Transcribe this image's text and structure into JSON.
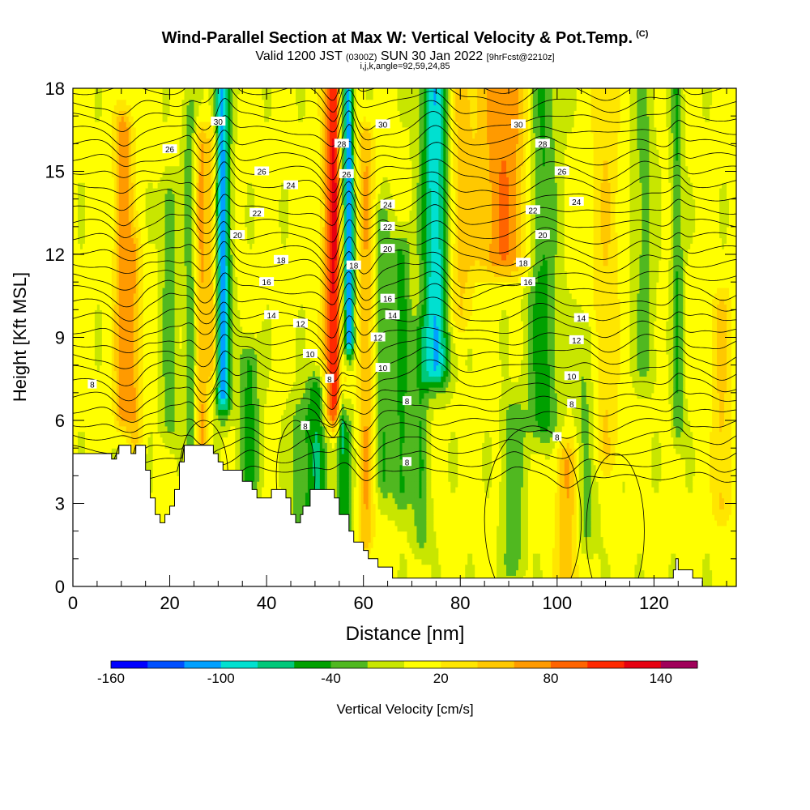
{
  "title": {
    "main": "Wind-Parallel Section at Max W: Vertical Velocity & Pot.Temp.",
    "copyright": "(C)",
    "valid_prefix": "Valid 1200 JST",
    "valid_utc": "(0300Z)",
    "valid_date": "SUN 30 Jan 2022",
    "fcst": "[9hrFcst@2210z]",
    "params": "i,j,k,angle=92,59,24,85"
  },
  "chart_data": {
    "type": "heatmap",
    "xlabel": "Distance [nm]",
    "ylabel": "Height [Kft MSL]",
    "xlim": [
      0,
      137
    ],
    "ylim": [
      0,
      18
    ],
    "x_ticks": [
      "0",
      "20",
      "40",
      "60",
      "80",
      "100",
      "120"
    ],
    "y_ticks": [
      "0",
      "3",
      "6",
      "9",
      "12",
      "15",
      "18"
    ],
    "colorbar": {
      "label": "Vertical Velocity [cm/s]",
      "tick_labels": [
        "-160",
        "-100",
        "-40",
        "20",
        "80",
        "140"
      ],
      "bounds": [
        -160,
        -140,
        -120,
        -100,
        -80,
        -60,
        -40,
        -20,
        0,
        20,
        40,
        60,
        80,
        100,
        120,
        140,
        160
      ],
      "colors": [
        "#0000ff",
        "#0050ff",
        "#00a0ff",
        "#00e0d0",
        "#00c87a",
        "#00a000",
        "#50b820",
        "#c8e600",
        "#ffff00",
        "#ffe600",
        "#ffc800",
        "#ff9a00",
        "#ff6400",
        "#ff2800",
        "#e60010",
        "#a0005a",
        "#5a0080"
      ]
    },
    "contour_field": "Potential Temperature",
    "contour_labels": [
      {
        "text": "30",
        "x": 30,
        "y": 16.8
      },
      {
        "text": "26",
        "x": 20,
        "y": 15.8
      },
      {
        "text": "26",
        "x": 39,
        "y": 15.0
      },
      {
        "text": "24",
        "x": 45,
        "y": 14.5
      },
      {
        "text": "22",
        "x": 38,
        "y": 13.5
      },
      {
        "text": "20",
        "x": 34,
        "y": 12.7
      },
      {
        "text": "18",
        "x": 43,
        "y": 11.8
      },
      {
        "text": "16",
        "x": 40,
        "y": 11.0
      },
      {
        "text": "14",
        "x": 41,
        "y": 9.8
      },
      {
        "text": "12",
        "x": 47,
        "y": 9.5
      },
      {
        "text": "10",
        "x": 49,
        "y": 8.4
      },
      {
        "text": "8",
        "x": 53,
        "y": 7.5
      },
      {
        "text": "8",
        "x": 4,
        "y": 7.3
      },
      {
        "text": "28",
        "x": 55.5,
        "y": 16.0
      },
      {
        "text": "26",
        "x": 56.5,
        "y": 14.9
      },
      {
        "text": "18",
        "x": 58,
        "y": 11.6
      },
      {
        "text": "30",
        "x": 64,
        "y": 16.7
      },
      {
        "text": "24",
        "x": 65,
        "y": 13.8
      },
      {
        "text": "22",
        "x": 65,
        "y": 13.0
      },
      {
        "text": "20",
        "x": 65,
        "y": 12.2
      },
      {
        "text": "16",
        "x": 65,
        "y": 10.4
      },
      {
        "text": "14",
        "x": 66,
        "y": 9.8
      },
      {
        "text": "12",
        "x": 63,
        "y": 9.0
      },
      {
        "text": "10",
        "x": 64,
        "y": 7.9
      },
      {
        "text": "8",
        "x": 69,
        "y": 6.7
      },
      {
        "text": "8",
        "x": 48,
        "y": 5.8
      },
      {
        "text": "8",
        "x": 69,
        "y": 4.5
      },
      {
        "text": "30",
        "x": 92,
        "y": 16.7
      },
      {
        "text": "28",
        "x": 97,
        "y": 16.0
      },
      {
        "text": "26",
        "x": 101,
        "y": 15.0
      },
      {
        "text": "24",
        "x": 104,
        "y": 13.9
      },
      {
        "text": "22",
        "x": 95,
        "y": 13.6
      },
      {
        "text": "20",
        "x": 97,
        "y": 12.7
      },
      {
        "text": "18",
        "x": 93,
        "y": 11.7
      },
      {
        "text": "16",
        "x": 94,
        "y": 11.0
      },
      {
        "text": "14",
        "x": 105,
        "y": 9.7
      },
      {
        "text": "12",
        "x": 104,
        "y": 8.9
      },
      {
        "text": "10",
        "x": 103,
        "y": 7.6
      },
      {
        "text": "8",
        "x": 103,
        "y": 6.6
      },
      {
        "text": "8",
        "x": 100,
        "y": 5.4
      }
    ],
    "terrain_kft": [
      [
        0,
        4.8
      ],
      [
        8,
        4.8
      ],
      [
        8,
        4.6
      ],
      [
        9,
        4.6
      ],
      [
        9,
        4.8
      ],
      [
        9.5,
        4.8
      ],
      [
        9.5,
        5.1
      ],
      [
        12,
        5.1
      ],
      [
        12,
        4.8
      ],
      [
        13,
        4.8
      ],
      [
        13,
        5.1
      ],
      [
        15,
        5.1
      ],
      [
        15,
        4.2
      ],
      [
        16,
        4.2
      ],
      [
        16,
        3.2
      ],
      [
        17,
        3.2
      ],
      [
        17,
        2.6
      ],
      [
        18,
        2.6
      ],
      [
        18,
        2.3
      ],
      [
        19,
        2.3
      ],
      [
        19,
        2.6
      ],
      [
        20,
        2.6
      ],
      [
        20,
        2.9
      ],
      [
        21,
        2.9
      ],
      [
        21,
        3.5
      ],
      [
        22,
        3.5
      ],
      [
        22,
        4.5
      ],
      [
        23,
        4.5
      ],
      [
        23,
        5.1
      ],
      [
        29,
        5.1
      ],
      [
        29,
        4.8
      ],
      [
        30,
        4.8
      ],
      [
        30,
        4.5
      ],
      [
        31,
        4.5
      ],
      [
        31,
        4.2
      ],
      [
        35,
        4.2
      ],
      [
        35,
        3.8
      ],
      [
        37,
        3.8
      ],
      [
        37,
        3.5
      ],
      [
        38,
        3.5
      ],
      [
        38,
        3.2
      ],
      [
        41,
        3.2
      ],
      [
        41,
        3.5
      ],
      [
        44,
        3.5
      ],
      [
        44,
        3.2
      ],
      [
        45,
        3.2
      ],
      [
        45,
        2.6
      ],
      [
        46,
        2.6
      ],
      [
        46,
        2.3
      ],
      [
        47,
        2.3
      ],
      [
        47,
        2.6
      ],
      [
        47.5,
        2.6
      ],
      [
        47.5,
        2.9
      ],
      [
        49,
        2.9
      ],
      [
        49,
        3.5
      ],
      [
        54,
        3.5
      ],
      [
        54,
        3.2
      ],
      [
        55,
        3.2
      ],
      [
        55,
        2.6
      ],
      [
        57,
        2.6
      ],
      [
        57,
        2.0
      ],
      [
        58,
        2.0
      ],
      [
        58,
        1.6
      ],
      [
        60,
        1.6
      ],
      [
        60,
        1.3
      ],
      [
        61,
        1.3
      ],
      [
        61,
        1.0
      ],
      [
        63,
        1.0
      ],
      [
        63,
        0.7
      ],
      [
        66,
        0.7
      ],
      [
        66,
        0.3
      ],
      [
        124,
        0.3
      ],
      [
        124,
        0.6
      ],
      [
        124.5,
        0.6
      ],
      [
        124.5,
        1.0
      ],
      [
        125,
        1.0
      ],
      [
        125,
        0.6
      ],
      [
        128,
        0.6
      ],
      [
        128,
        0.3
      ],
      [
        130,
        0.3
      ],
      [
        130,
        0.0
      ],
      [
        137,
        0.0
      ]
    ],
    "w_features": [
      {
        "x": 10.5,
        "z0": 6.5,
        "z1": 16.5,
        "amp": 70,
        "w": 1.4
      },
      {
        "x": 13,
        "z0": 5.5,
        "z1": 12,
        "amp": 40,
        "w": 1.0
      },
      {
        "x": 20,
        "z0": 6,
        "z1": 14,
        "amp": -35,
        "w": 1.2
      },
      {
        "x": 24.5,
        "z0": 5,
        "z1": 17,
        "amp": -40,
        "w": 1.0
      },
      {
        "x": 26.5,
        "z0": 5,
        "z1": 16,
        "amp": 60,
        "w": 1.0
      },
      {
        "x": 31,
        "z0": 7,
        "z1": 18,
        "amp": -115,
        "w": 1.1
      },
      {
        "x": 29,
        "z0": 8,
        "z1": 16,
        "amp": 50,
        "w": 0.8
      },
      {
        "x": 36.5,
        "z0": 4,
        "z1": 8,
        "amp": -50,
        "w": 1.5
      },
      {
        "x": 47,
        "z0": 1,
        "z1": 6,
        "amp": -35,
        "w": 1.5
      },
      {
        "x": 50.5,
        "z0": 3,
        "z1": 7,
        "amp": -60,
        "w": 1.6
      },
      {
        "x": 54,
        "z0": 6.5,
        "z1": 18,
        "amp": 120,
        "w": 1.5
      },
      {
        "x": 57,
        "z0": 9,
        "z1": 18,
        "amp": -140,
        "w": 0.8
      },
      {
        "x": 55.5,
        "z0": 6,
        "z1": 18,
        "amp": -50,
        "w": 0.5
      },
      {
        "x": 56,
        "z0": 1,
        "z1": 6,
        "amp": -60,
        "w": 1.2
      },
      {
        "x": 60.5,
        "z0": 2,
        "z1": 16,
        "amp": 55,
        "w": 1.2
      },
      {
        "x": 64,
        "z0": 4,
        "z1": 13,
        "amp": -40,
        "w": 1.2
      },
      {
        "x": 68,
        "z0": 3.5,
        "z1": 12,
        "amp": -50,
        "w": 1.4
      },
      {
        "x": 75,
        "z0": 8,
        "z1": 18,
        "amp": -100,
        "w": 2.0
      },
      {
        "x": 72,
        "z0": 2,
        "z1": 9,
        "amp": -40,
        "w": 1.2
      },
      {
        "x": 80,
        "z0": 10,
        "z1": 18,
        "amp": 40,
        "w": 2.0
      },
      {
        "x": 89,
        "z0": 12,
        "z1": 18,
        "amp": 75,
        "w": 4.0
      },
      {
        "x": 91,
        "z0": 1,
        "z1": 6,
        "amp": -40,
        "w": 1.5
      },
      {
        "x": 97,
        "z0": 6,
        "z1": 18,
        "amp": -55,
        "w": 2.2
      },
      {
        "x": 102,
        "z0": 0.5,
        "z1": 4.5,
        "amp": 55,
        "w": 1.6
      },
      {
        "x": 106,
        "z0": 2,
        "z1": 9,
        "amp": -30,
        "w": 1.5
      },
      {
        "x": 110,
        "z0": 5,
        "z1": 18,
        "amp": 35,
        "w": 2.0
      },
      {
        "x": 118,
        "z0": 8,
        "z1": 18,
        "amp": -30,
        "w": 1.5
      },
      {
        "x": 125,
        "z0": 6,
        "z1": 18,
        "amp": -45,
        "w": 0.8
      },
      {
        "x": 134,
        "z0": 3,
        "z1": 10,
        "amp": 40,
        "w": 1.5
      }
    ]
  }
}
